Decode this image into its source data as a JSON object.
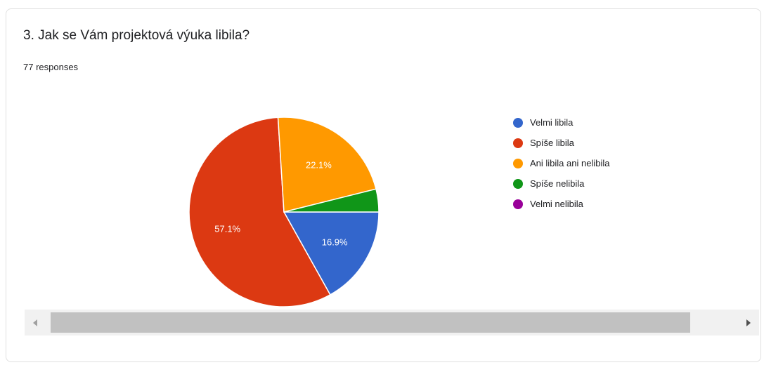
{
  "question": {
    "title": "3. Jak se Vám projektová výuka libila?",
    "responses": "77 responses"
  },
  "chart_data": {
    "type": "pie",
    "labels": [
      "Velmi libila",
      "Spíše libila",
      "Ani libila ani nelibila",
      "Spíše nelibila",
      "Velmi nelibila"
    ],
    "values": [
      16.9,
      57.1,
      22.1,
      3.9,
      0
    ],
    "colors": [
      "#3366cc",
      "#dc3912",
      "#ff9900",
      "#109618",
      "#990099"
    ],
    "data_labels": [
      "16.9%",
      "57.1%",
      "22.1%",
      "",
      ""
    ],
    "legend_position": "right"
  },
  "scrollbar": {
    "left_icon": "triangle-left-icon",
    "right_icon": "triangle-right-icon"
  }
}
